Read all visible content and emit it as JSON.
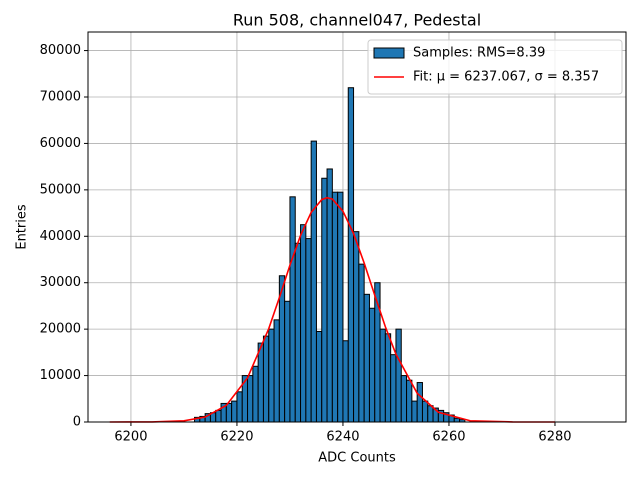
{
  "chart_data": {
    "type": "histogram",
    "title": "Run 508, channel047, Pedestal",
    "x_label": "ADC Counts",
    "y_label": "Entries",
    "xlim": [
      6191.9,
      6293.4
    ],
    "ylim": [
      0,
      84000
    ],
    "xticks": [
      6200,
      6220,
      6240,
      6260,
      6280
    ],
    "yticks": [
      0,
      10000,
      20000,
      30000,
      40000,
      50000,
      60000,
      70000,
      80000
    ],
    "grid": true,
    "legend": "upper right",
    "series": [
      {
        "type": "histogram",
        "name": "Samples: RMS=8.39",
        "color": "#1f77b4",
        "edgecolor": "#000000",
        "bins": [
          6212,
          6213,
          6214,
          6215,
          6216,
          6217,
          6218,
          6219,
          6220,
          6221,
          6222,
          6223,
          6224,
          6225,
          6226,
          6227,
          6228,
          6229,
          6230,
          6231,
          6232,
          6233,
          6234,
          6235,
          6236,
          6237,
          6238,
          6239,
          6240,
          6241,
          6242,
          6243,
          6244,
          6245,
          6246,
          6247,
          6248,
          6249,
          6250,
          6251,
          6252,
          6253,
          6254,
          6255,
          6256,
          6257,
          6258,
          6259,
          6260,
          6261,
          6262,
          6263
        ],
        "values": [
          1000,
          1200,
          1800,
          2000,
          2500,
          4000,
          4000,
          4500,
          6500,
          10000,
          10000,
          12000,
          17000,
          18500,
          20000,
          22000,
          31500,
          26000,
          48500,
          38500,
          42500,
          39500,
          60500,
          19500,
          52500,
          54500,
          49500,
          49500,
          17500,
          72000,
          41000,
          34000,
          27500,
          24500,
          30000,
          20000,
          19000,
          14500,
          20000,
          10000,
          9000,
          4500,
          8500,
          4500,
          3500,
          3000,
          2500,
          2000,
          1500,
          800,
          500
        ]
      },
      {
        "type": "line",
        "name": "Fit: μ = 6237.067, σ = 8.357",
        "color": "#ff0000",
        "x": [
          6196,
          6204,
          6210,
          6214,
          6218,
          6222,
          6226,
          6228,
          6230,
          6232,
          6234,
          6236,
          6237,
          6238,
          6240,
          6242,
          6244,
          6246,
          6248,
          6250,
          6254,
          6258,
          6264,
          6272,
          6280
        ],
        "values": [
          0,
          19,
          255,
          1070,
          3580,
          9510,
          20100,
          26800,
          33780,
          40180,
          45150,
          47900,
          48300,
          48000,
          45410,
          40580,
          34240,
          27290,
          20520,
          14590,
          6200,
          2100,
          270,
          8,
          0
        ]
      }
    ]
  }
}
